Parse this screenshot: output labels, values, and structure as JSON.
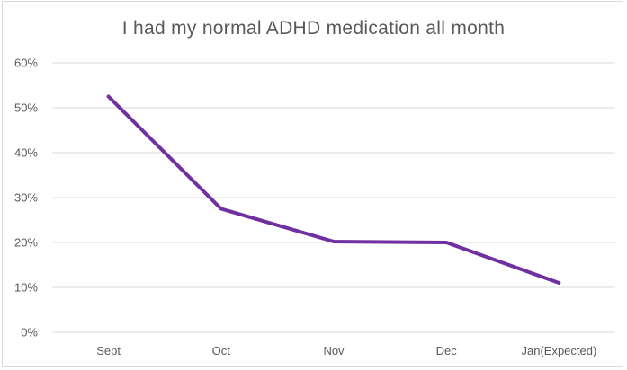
{
  "chart_data": {
    "type": "line",
    "title": "I had my normal ADHD medication all month",
    "xlabel": "",
    "ylabel": "",
    "categories": [
      "Sept",
      "Oct",
      "Nov",
      "Dec",
      "Jan(Expected)"
    ],
    "series": [
      {
        "values": [
          0.525,
          0.275,
          0.202,
          0.2,
          0.11
        ],
        "color": "#7030a0"
      }
    ],
    "ylim": [
      0,
      0.6
    ],
    "yticks": [
      0,
      0.1,
      0.2,
      0.3,
      0.4,
      0.5,
      0.6
    ],
    "ytick_labels": [
      "0%",
      "10%",
      "20%",
      "30%",
      "40%",
      "50%",
      "60%"
    ],
    "grid": true,
    "gridline_color": "#d9d9d9",
    "legend": "none"
  }
}
